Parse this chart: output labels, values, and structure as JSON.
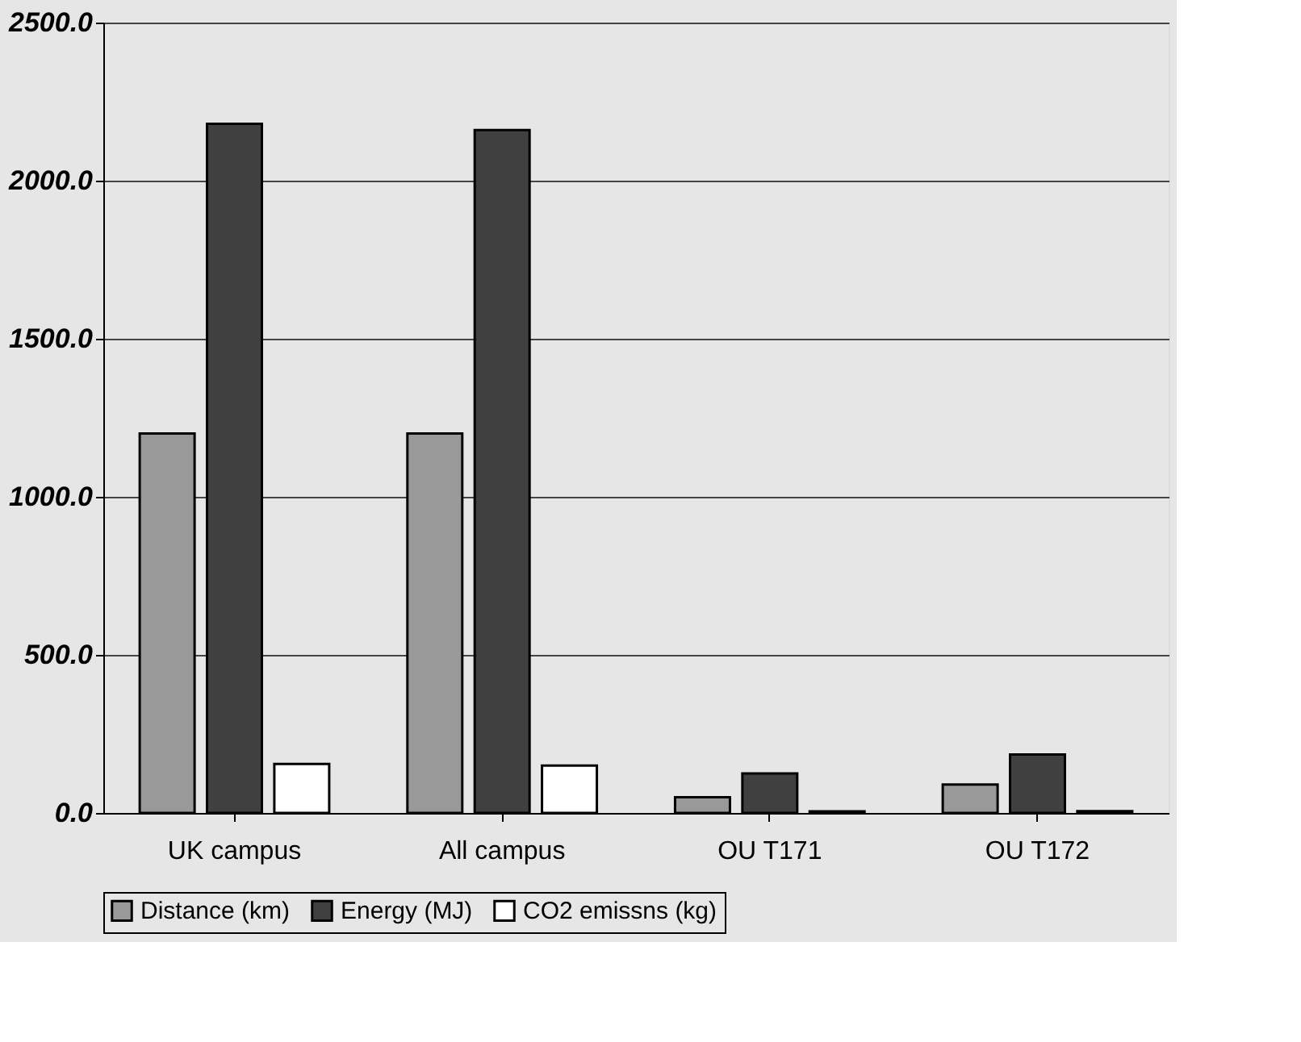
{
  "chart_data": {
    "type": "bar",
    "categories": [
      "UK campus",
      "All campus",
      "OU T171",
      "OU T172"
    ],
    "series": [
      {
        "name": "Distance (km)",
        "color": "#999999",
        "values": [
          1200,
          1200,
          50,
          90
        ]
      },
      {
        "name": "Energy (MJ)",
        "color": "#404040",
        "values": [
          2180,
          2160,
          125,
          185
        ]
      },
      {
        "name": "CO2 emissns (kg)",
        "color": "#ffffff",
        "values": [
          155,
          150,
          5,
          6
        ]
      }
    ],
    "ylim": [
      0,
      2500
    ],
    "yticks": [
      {
        "value": 0,
        "label": "0.0"
      },
      {
        "value": 500,
        "label": "500.0"
      },
      {
        "value": 1000,
        "label": "1000.0"
      },
      {
        "value": 1500,
        "label": "1500.0"
      },
      {
        "value": 2000,
        "label": "2000.0"
      },
      {
        "value": 2500,
        "label": "2500.0"
      }
    ],
    "grid": "y",
    "legend": "bottom"
  }
}
